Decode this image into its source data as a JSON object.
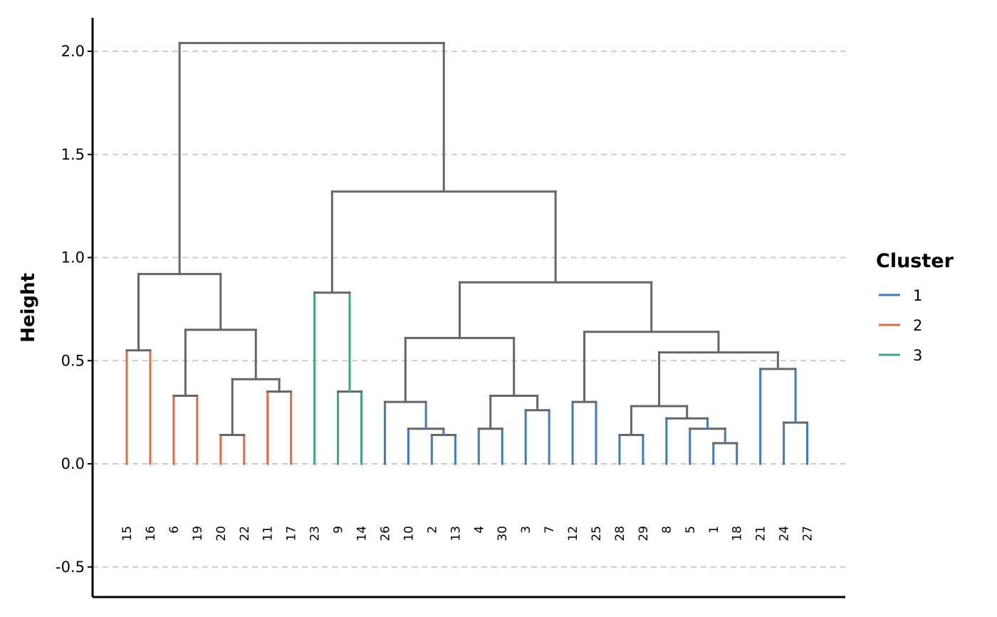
{
  "chart_data": {
    "type": "dendrogram",
    "title": "",
    "xlabel": "",
    "ylabel": "Height",
    "ylim": [
      -0.55,
      2.2
    ],
    "yticks": [
      -0.5,
      0.0,
      0.5,
      1.0,
      1.5,
      2.0
    ],
    "ytick_labels": [
      "-0.5",
      "0.0",
      "0.5",
      "1.0",
      "1.5",
      "2.0"
    ],
    "grid": "horizontal dashed",
    "leaf_order": [
      "15",
      "16",
      "6",
      "19",
      "20",
      "22",
      "11",
      "17",
      "23",
      "9",
      "14",
      "26",
      "10",
      "2",
      "13",
      "4",
      "30",
      "3",
      "7",
      "12",
      "25",
      "28",
      "29",
      "8",
      "5",
      "1",
      "18",
      "21",
      "24",
      "27"
    ],
    "leaf_clusters": [
      "2",
      "2",
      "2",
      "2",
      "2",
      "2",
      "2",
      "2",
      "3",
      "3",
      "3",
      "1",
      "1",
      "1",
      "1",
      "1",
      "1",
      "1",
      "1",
      "1",
      "1",
      "1",
      "1",
      "1",
      "1",
      "1",
      "1",
      "1",
      "1",
      "1"
    ],
    "merge_color": "#666666",
    "nodes": {
      "n15_16": {
        "height": 0.55,
        "children": [
          "15",
          "16"
        ],
        "cluster": "2"
      },
      "n6_19": {
        "height": 0.33,
        "children": [
          "6",
          "19"
        ],
        "cluster": "2"
      },
      "n20_22": {
        "height": 0.14,
        "children": [
          "20",
          "22"
        ],
        "cluster": "2"
      },
      "n11_17": {
        "height": 0.35,
        "children": [
          "11",
          "17"
        ],
        "cluster": "2"
      },
      "nA": {
        "height": 0.41,
        "children": [
          "n20_22",
          "n11_17"
        ]
      },
      "nB": {
        "height": 0.65,
        "children": [
          "n6_19",
          "nA"
        ]
      },
      "nLeft": {
        "height": 0.92,
        "children": [
          "n15_16",
          "nB"
        ]
      },
      "n9_14": {
        "height": 0.35,
        "children": [
          "9",
          "14"
        ],
        "cluster": "3"
      },
      "n23": {
        "height": 0.83,
        "children": [
          "23",
          "n9_14"
        ],
        "cluster": "3"
      },
      "n2_13": {
        "height": 0.14,
        "children": [
          "2",
          "13"
        ],
        "cluster": "1"
      },
      "n10_2_13": {
        "height": 0.17,
        "children": [
          "10",
          "n2_13"
        ],
        "cluster": "1"
      },
      "n26": {
        "height": 0.3,
        "children": [
          "26",
          "n10_2_13"
        ],
        "cluster": "1"
      },
      "n4_30": {
        "height": 0.17,
        "children": [
          "4",
          "30"
        ],
        "cluster": "1"
      },
      "n3_7": {
        "height": 0.26,
        "children": [
          "3",
          "7"
        ],
        "cluster": "1"
      },
      "nC": {
        "height": 0.33,
        "children": [
          "n4_30",
          "n3_7"
        ]
      },
      "nD": {
        "height": 0.61,
        "children": [
          "n26",
          "nC"
        ]
      },
      "n12_25": {
        "height": 0.3,
        "children": [
          "12",
          "25"
        ],
        "cluster": "1"
      },
      "n28_29": {
        "height": 0.14,
        "children": [
          "28",
          "29"
        ],
        "cluster": "1"
      },
      "n1_18": {
        "height": 0.1,
        "children": [
          "1",
          "18"
        ],
        "cluster": "1"
      },
      "n5": {
        "height": 0.17,
        "children": [
          "5",
          "n1_18"
        ],
        "cluster": "1"
      },
      "n8": {
        "height": 0.22,
        "children": [
          "8",
          "n5"
        ],
        "cluster": "1"
      },
      "nE": {
        "height": 0.28,
        "children": [
          "n28_29",
          "n8"
        ]
      },
      "n24_27": {
        "height": 0.2,
        "children": [
          "24",
          "27"
        ],
        "cluster": "1"
      },
      "n21": {
        "height": 0.46,
        "children": [
          "21",
          "n24_27"
        ],
        "cluster": "1"
      },
      "nF": {
        "height": 0.54,
        "children": [
          "nE",
          "n21"
        ]
      },
      "nG": {
        "height": 0.64,
        "children": [
          "n12_25",
          "nF"
        ]
      },
      "nH": {
        "height": 0.88,
        "children": [
          "nD",
          "nG"
        ]
      },
      "nI": {
        "height": 1.32,
        "children": [
          "n23",
          "nH"
        ]
      },
      "root": {
        "height": 2.04,
        "children": [
          "nLeft",
          "nI"
        ]
      }
    },
    "legend": {
      "title": "Cluster",
      "position": "right",
      "entries": [
        {
          "label": "1",
          "color": "#3f7bbd"
        },
        {
          "label": "2",
          "color": "#e36c44"
        },
        {
          "label": "3",
          "color": "#3ea68a"
        }
      ]
    }
  }
}
